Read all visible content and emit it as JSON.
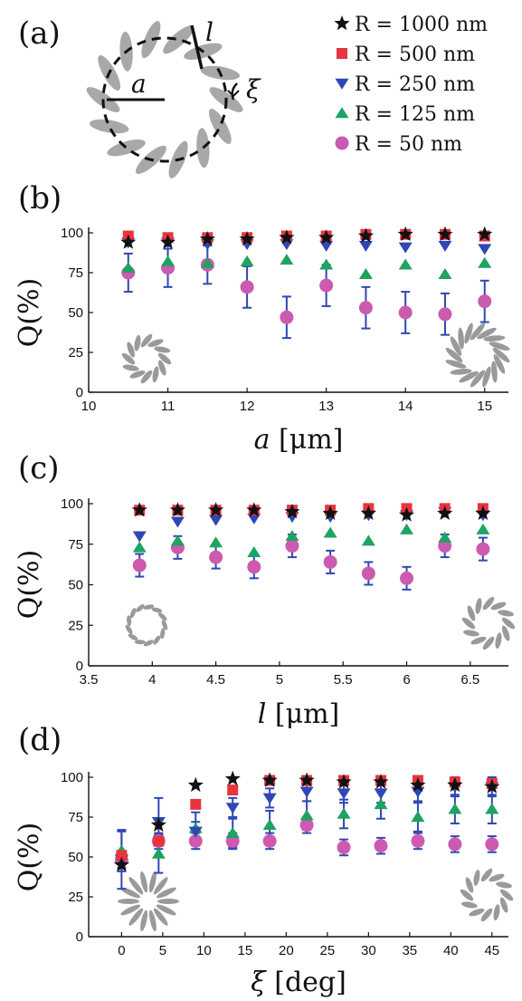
{
  "panel_labels": {
    "a": "(a)",
    "b": "(b)",
    "c": "(c)",
    "d": "(d)"
  },
  "schematic_labels": {
    "a": "a",
    "l": "l",
    "xi": "ξ"
  },
  "colors": {
    "R1000": "#111111",
    "R500": "#e8343f",
    "R250": "#2f47b4",
    "R125": "#1ea360",
    "R50": "#cc5ab0",
    "errorbar": "#2f47b4",
    "inset": "#9a9a9a"
  },
  "chart_data": [
    {
      "type": "scatter",
      "panel": "(b)",
      "xlabel": "a [μm]",
      "ylabel": "Q(%)",
      "xlim": [
        10,
        15.3
      ],
      "ylim": [
        0,
        100
      ],
      "xticks": [
        "10",
        "11",
        "12",
        "13",
        "14",
        "15"
      ],
      "yticks": [
        "0",
        "25",
        "50",
        "75",
        "100"
      ],
      "x": [
        10.5,
        11.0,
        11.5,
        12.0,
        12.5,
        13.0,
        13.5,
        14.0,
        14.5,
        15.0
      ],
      "series": [
        {
          "name": "R = 1000 nm",
          "marker": "star",
          "values": [
            94,
            94,
            96,
            96,
            97,
            97,
            98,
            99,
            99,
            99
          ]
        },
        {
          "name": "R = 500 nm",
          "marker": "square",
          "values": [
            98,
            97,
            97,
            97,
            98,
            98,
            99,
            99,
            99,
            98
          ]
        },
        {
          "name": "R = 250 nm",
          "marker": "triangle-down",
          "values": [
            94,
            94,
            93,
            93,
            93,
            92,
            92,
            91,
            92,
            90
          ]
        },
        {
          "name": "R = 125 nm",
          "marker": "triangle-up",
          "values": [
            78,
            82,
            81,
            82,
            83,
            80,
            74,
            80,
            74,
            81
          ]
        },
        {
          "name": "R = 50 nm",
          "marker": "circle",
          "values": [
            75,
            78,
            80,
            66,
            47,
            67,
            53,
            50,
            49,
            57
          ],
          "errors": [
            12,
            12,
            12,
            13,
            13,
            13,
            13,
            13,
            13,
            13
          ]
        }
      ],
      "insets": [
        "left: sparse sparse-curved pinwheel",
        "right: dense pinwheel"
      ]
    },
    {
      "type": "scatter",
      "panel": "(c)",
      "xlabel": "l [μm]",
      "ylabel": "Q(%)",
      "xlim": [
        3.5,
        6.8
      ],
      "ylim": [
        0,
        100
      ],
      "xticks": [
        "3.5",
        "4",
        "4.5",
        "5",
        "5.5",
        "6",
        "6.5"
      ],
      "yticks": [
        "0",
        "25",
        "50",
        "75",
        "100"
      ],
      "x": [
        3.9,
        4.2,
        4.5,
        4.8,
        5.1,
        5.4,
        5.7,
        6.0,
        6.3,
        6.6
      ],
      "series": [
        {
          "name": "R = 1000 nm",
          "marker": "star",
          "values": [
            96,
            96,
            96,
            96,
            95,
            94,
            94,
            93,
            94,
            94
          ]
        },
        {
          "name": "R = 500 nm",
          "marker": "square",
          "values": [
            96,
            96,
            96,
            96,
            96,
            96,
            97,
            97,
            97,
            97
          ]
        },
        {
          "name": "R = 250 nm",
          "marker": "triangle-down",
          "values": [
            80,
            89,
            90,
            91,
            92,
            92,
            93,
            93,
            95,
            93
          ]
        },
        {
          "name": "R = 125 nm",
          "marker": "triangle-up",
          "values": [
            73,
            77,
            76,
            70,
            80,
            82,
            77,
            84,
            79,
            84
          ]
        },
        {
          "name": "R = 50 nm",
          "marker": "circle",
          "values": [
            62,
            73,
            67,
            61,
            74,
            64,
            57,
            54,
            74,
            72
          ],
          "errors": [
            7,
            7,
            7,
            7,
            7,
            7,
            7,
            7,
            7,
            7
          ]
        }
      ],
      "insets": [
        "left: short-segment ring",
        "right: long-segment pinwheel"
      ]
    },
    {
      "type": "scatter",
      "panel": "(d)",
      "xlabel": "ξ [deg]",
      "ylabel": "Q(%)",
      "xlim": [
        -4,
        47
      ],
      "ylim": [
        0,
        100
      ],
      "xticks": [
        "0",
        "5",
        "10",
        "15",
        "20",
        "25",
        "30",
        "35",
        "40",
        "45"
      ],
      "yticks": [
        "0",
        "25",
        "50",
        "75",
        "100"
      ],
      "x": [
        0,
        4.5,
        9,
        13.5,
        18,
        22.5,
        27,
        31.5,
        36,
        40.5,
        45
      ],
      "series": [
        {
          "name": "R = 1000 nm",
          "marker": "star",
          "values": [
            45,
            70,
            95,
            99,
            98,
            98,
            97,
            97,
            95,
            95,
            94
          ]
        },
        {
          "name": "R = 500 nm",
          "marker": "square",
          "values": [
            51,
            60,
            83,
            92,
            98,
            98,
            98,
            98,
            98,
            97,
            96
          ]
        },
        {
          "name": "R = 250 nm",
          "marker": "triangle-down",
          "values": [
            48,
            72,
            66,
            81,
            87,
            91,
            90,
            90,
            91,
            94,
            94
          ],
          "errors": [
            18,
            15,
            6,
            6,
            6,
            6,
            6,
            6,
            6,
            6,
            6
          ]
        },
        {
          "name": "R = 125 nm",
          "marker": "triangle-up",
          "values": [
            54,
            52,
            68,
            65,
            70,
            76,
            77,
            83,
            75,
            80,
            80
          ],
          "errors": [
            13,
            12,
            10,
            9,
            9,
            9,
            9,
            9,
            9,
            9,
            9
          ]
        },
        {
          "name": "R = 50 nm",
          "marker": "circle",
          "values": [
            48,
            60,
            60,
            60,
            60,
            70,
            56,
            57,
            60,
            58,
            58
          ],
          "errors": [
            5,
            5,
            5,
            5,
            5,
            5,
            5,
            5,
            5,
            5,
            5
          ]
        }
      ],
      "insets": [
        "left: radial spokes",
        "right: pinwheel"
      ]
    }
  ]
}
